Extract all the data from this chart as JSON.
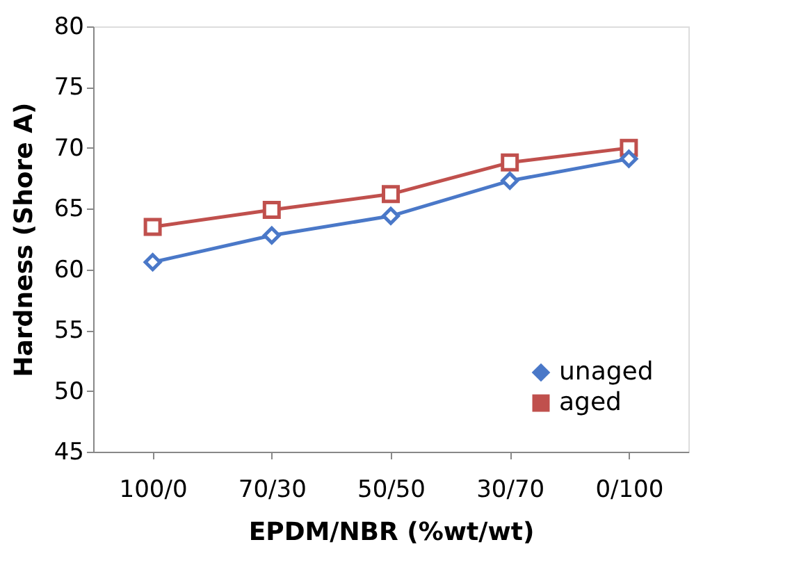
{
  "chart_data": {
    "type": "line",
    "xlabel": "EPDM/NBR (%wt/wt)",
    "ylabel": "Hardness  (Shore A)",
    "categories": [
      "100/0",
      "70/30",
      "50/50",
      "30/70",
      "0/100"
    ],
    "series": [
      {
        "name": "unaged",
        "color": "#4a78c8",
        "values": [
          60.6,
          62.8,
          64.4,
          67.3,
          69.1
        ],
        "marker": "diamond"
      },
      {
        "name": "aged",
        "color": "#c0504d",
        "values": [
          63.5,
          64.9,
          66.2,
          68.8,
          70.0
        ],
        "marker": "square"
      }
    ],
    "ylim": [
      45,
      80
    ],
    "yticks": [
      45,
      50,
      55,
      60,
      65,
      70,
      75,
      80
    ],
    "grid": false,
    "legend": "bottom right",
    "line_style": "solid"
  }
}
